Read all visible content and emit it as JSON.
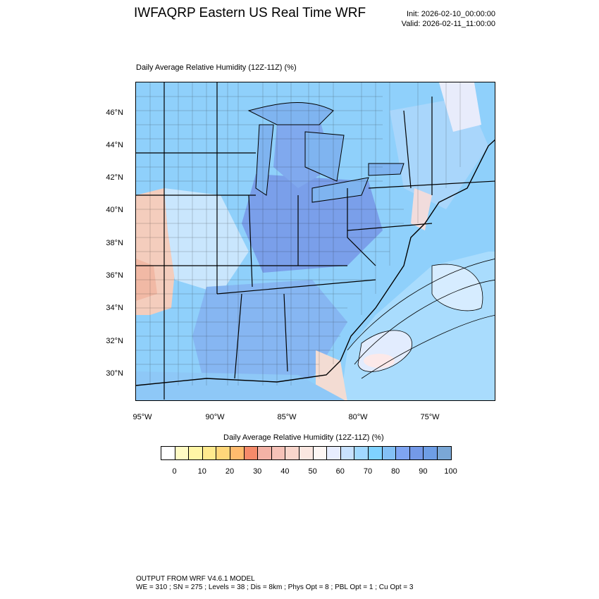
{
  "header": {
    "title": "IWFAQRP Eastern US Real Time WRF",
    "init": "Init: 2026-02-10_00:00:00",
    "valid": "Valid: 2026-02-11_11:00:00"
  },
  "plot": {
    "subtitle": "Daily Average Relative Humidity (12Z-11Z)   (%)",
    "lat_labels": [
      "46°N",
      "44°N",
      "42°N",
      "40°N",
      "38°N",
      "36°N",
      "34°N",
      "32°N",
      "30°N"
    ],
    "lon_labels": [
      "95°W",
      "90°W",
      "85°W",
      "80°W",
      "75°W"
    ]
  },
  "colorbar": {
    "title": "Daily Average Relative Humidity (12Z-11Z)  (%)",
    "colors": [
      "#ffffff",
      "#fffbc4",
      "#fff6a6",
      "#ffea8e",
      "#ffd77a",
      "#ffbb6e",
      "#f58a6a",
      "#f3b2a6",
      "#f6c2b8",
      "#f9d6cc",
      "#fbe7e1",
      "#fdf6f4",
      "#e7edff",
      "#c8e2ff",
      "#a1d9ff",
      "#7fd2ff",
      "#83c0f5",
      "#7fa5f2",
      "#7499e8",
      "#6e9ee6",
      "#7aa7d6"
    ],
    "labels": [
      "0",
      "10",
      "20",
      "30",
      "40",
      "50",
      "60",
      "70",
      "80",
      "90",
      "100"
    ]
  },
  "footer": {
    "line1": "OUTPUT FROM WRF V4.6.1 MODEL",
    "line2": "WE = 310 ; SN = 275 ; Levels = 38 ; Dis = 8km ; Phys Opt = 8 ; PBL Opt = 1 ; Cu Opt = 3"
  }
}
